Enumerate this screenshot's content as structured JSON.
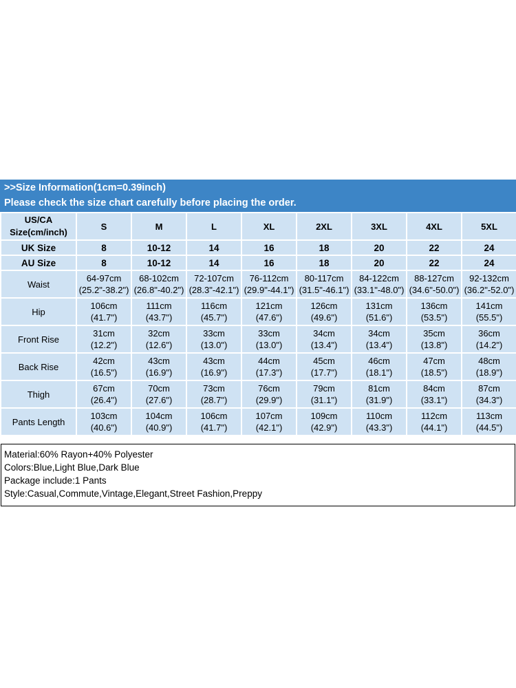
{
  "banner": {
    "line1": ">>Size Information(1cm=0.39inch)",
    "line2": "Please check the size chart carefully before placing the order."
  },
  "table": {
    "corner_label": "US/CA\nSize(cm/inch)",
    "sizes": [
      "S",
      "M",
      "L",
      "XL",
      "2XL",
      "3XL",
      "4XL",
      "5XL"
    ],
    "size_rows": [
      {
        "label": "UK Size",
        "values": [
          "8",
          "10-12",
          "14",
          "16",
          "18",
          "20",
          "22",
          "24"
        ]
      },
      {
        "label": "AU Size",
        "values": [
          "8",
          "10-12",
          "14",
          "16",
          "18",
          "20",
          "22",
          "24"
        ]
      }
    ],
    "measure_rows": [
      {
        "label": "Waist",
        "values": [
          "64-97cm\n(25.2\"-38.2\")",
          "68-102cm\n(26.8\"-40.2\")",
          "72-107cm\n(28.3\"-42.1\")",
          "76-112cm\n(29.9\"-44.1\")",
          "80-117cm\n(31.5\"-46.1\")",
          "84-122cm\n(33.1\"-48.0\")",
          "88-127cm\n(34.6\"-50.0\")",
          "92-132cm\n(36.2\"-52.0\")"
        ]
      },
      {
        "label": "Hip",
        "values": [
          "106cm\n(41.7\")",
          "111cm\n(43.7\")",
          "116cm\n(45.7\")",
          "121cm\n(47.6\")",
          "126cm\n(49.6\")",
          "131cm\n(51.6\")",
          "136cm\n(53.5\")",
          "141cm\n(55.5\")"
        ]
      },
      {
        "label": "Front Rise",
        "values": [
          "31cm\n(12.2\")",
          "32cm\n(12.6\")",
          "33cm\n(13.0\")",
          "33cm\n(13.0\")",
          "34cm\n(13.4\")",
          "34cm\n(13.4\")",
          "35cm\n(13.8\")",
          "36cm\n(14.2\")"
        ]
      },
      {
        "label": "Back Rise",
        "values": [
          "42cm\n(16.5\")",
          "43cm\n(16.9\")",
          "43cm\n(16.9\")",
          "44cm\n(17.3\")",
          "45cm\n(17.7\")",
          "46cm\n(18.1\")",
          "47cm\n(18.5\")",
          "48cm\n(18.9\")"
        ]
      },
      {
        "label": "Thigh",
        "values": [
          "67cm\n(26.4\")",
          "70cm\n(27.6\")",
          "73cm\n(28.7\")",
          "76cm\n(29.9\")",
          "79cm\n(31.1\")",
          "81cm\n(31.9\")",
          "84cm\n(33.1\")",
          "87cm\n(34.3\")"
        ]
      },
      {
        "label": "Pants Length",
        "values": [
          "103cm\n(40.6\")",
          "104cm\n(40.9\")",
          "106cm\n(41.7\")",
          "107cm\n(42.1\")",
          "109cm\n(42.9\")",
          "110cm\n(43.3\")",
          "112cm\n(44.1\")",
          "113cm\n(44.5\")"
        ]
      }
    ]
  },
  "info": {
    "lines": [
      "Material:60% Rayon+40% Polyester",
      "Colors:Blue,Light Blue,Dark Blue",
      "Package include:1 Pants",
      "Style:Casual,Commute,Vintage,Elegant,Street Fashion,Preppy"
    ]
  },
  "colors": {
    "banner_bg": "#3d85c6",
    "cell_bg": "#cfe2f3",
    "banner_text": "#ffffff"
  }
}
